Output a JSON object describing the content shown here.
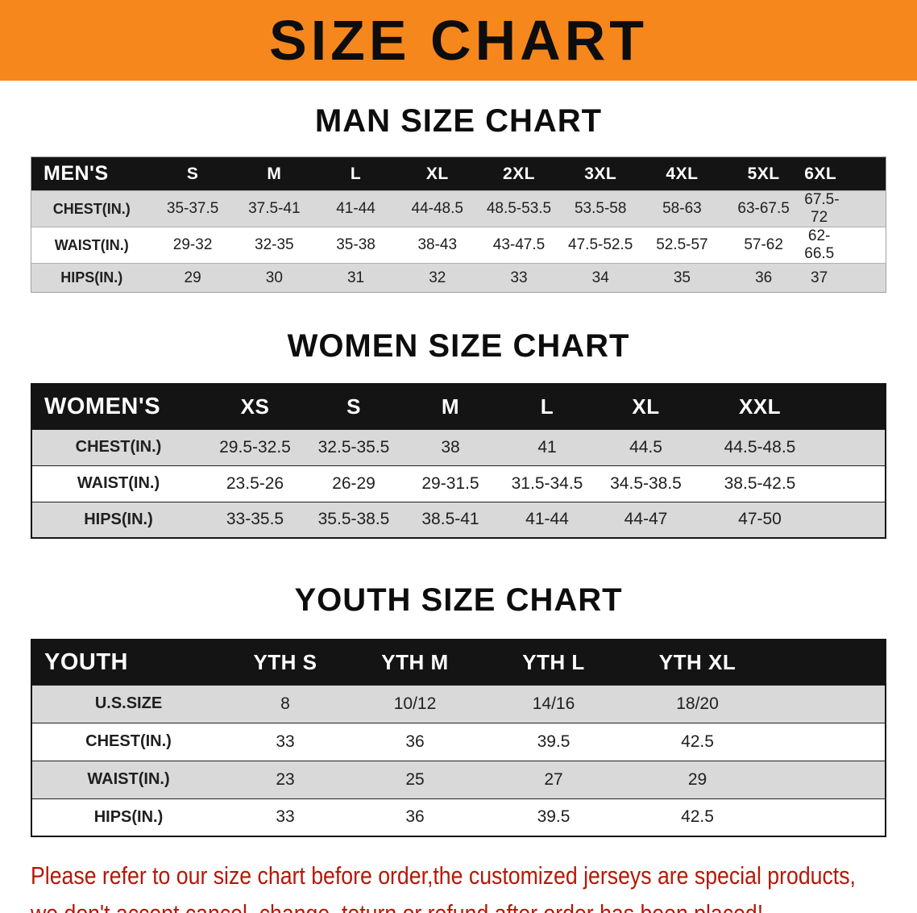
{
  "banner": {
    "title": "SIZE CHART"
  },
  "sections": [
    {
      "id": "men",
      "title": "MAN SIZE CHART",
      "table": {
        "header": [
          "MEN'S",
          "S",
          "M",
          "L",
          "XL",
          "2XL",
          "3XL",
          "4XL",
          "5XL",
          "6XL"
        ],
        "rows": [
          [
            "CHEST(IN.)",
            "35-37.5",
            "37.5-41",
            "41-44",
            "44-48.5",
            "48.5-53.5",
            "53.5-58",
            "58-63",
            "63-67.5",
            "67.5-72"
          ],
          [
            "WAIST(IN.)",
            "29-32",
            "32-35",
            "35-38",
            "38-43",
            "43-47.5",
            "47.5-52.5",
            "52.5-57",
            "57-62",
            "62-66.5"
          ],
          [
            "HIPS(IN.)",
            "29",
            "30",
            "31",
            "32",
            "33",
            "34",
            "35",
            "36",
            "37"
          ]
        ]
      }
    },
    {
      "id": "women",
      "title": "WOMEN SIZE CHART",
      "table": {
        "header": [
          "WOMEN'S",
          "XS",
          "S",
          "M",
          "L",
          "XL",
          "XXL"
        ],
        "rows": [
          [
            "CHEST(IN.)",
            "29.5-32.5",
            "32.5-35.5",
            "38",
            "41",
            "44.5",
            "44.5-48.5"
          ],
          [
            "WAIST(IN.)",
            "23.5-26",
            "26-29",
            "29-31.5",
            "31.5-34.5",
            "34.5-38.5",
            "38.5-42.5"
          ],
          [
            "HIPS(IN.)",
            "33-35.5",
            "35.5-38.5",
            "38.5-41",
            "41-44",
            "44-47",
            "47-50"
          ]
        ]
      }
    },
    {
      "id": "youth",
      "title": "YOUTH SIZE CHART",
      "table": {
        "header": [
          "YOUTH",
          "YTH S",
          "YTH M",
          "YTH L",
          "YTH XL"
        ],
        "rows": [
          [
            "U.S.SIZE",
            "8",
            "10/12",
            "14/16",
            "18/20"
          ],
          [
            "CHEST(IN.)",
            "33",
            "36",
            "39.5",
            "42.5"
          ],
          [
            "WAIST(IN.)",
            "23",
            "25",
            "27",
            "29"
          ],
          [
            "HIPS(IN.)",
            "33",
            "36",
            "39.5",
            "42.5"
          ]
        ]
      }
    }
  ],
  "disclaimer": {
    "line1": "Please refer to our size chart before order,the customized jerseys are special products,",
    "line2": "we don't accept cancel, change, teturn or refund after order has been placed!"
  },
  "colors": {
    "banner_bg": "#f6871d",
    "table_header_bg": "#141414",
    "row_stripe_bg": "#d9d9d9",
    "disclaimer_text": "#b51807"
  }
}
